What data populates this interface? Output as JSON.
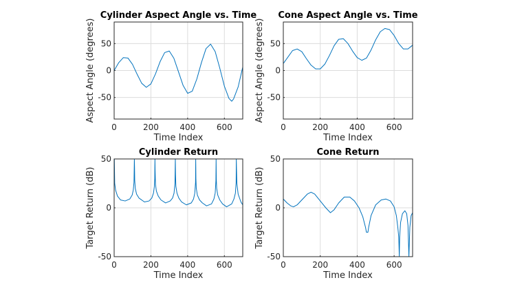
{
  "colors": {
    "line": "#0072bd",
    "grid": "#dcdcdc",
    "axes": "#262626"
  },
  "chart_data": [
    {
      "type": "line",
      "title": "Cylinder Aspect Angle vs. Time",
      "xlabel": "Time Index",
      "ylabel": "Aspect Angle (degrees)",
      "xlim": [
        0,
        700
      ],
      "ylim": [
        -90,
        90
      ],
      "xticks": [
        "0",
        "200",
        "400",
        "600"
      ],
      "yticks": [
        "-50",
        "0",
        "50"
      ],
      "grid": true,
      "points": [
        [
          0,
          0
        ],
        [
          25,
          14.6
        ],
        [
          50,
          24
        ],
        [
          75,
          23.2
        ],
        [
          100,
          11.4
        ],
        [
          125,
          -6.9
        ],
        [
          150,
          -23.7
        ],
        [
          175,
          -31.1
        ],
        [
          200,
          -24.8
        ],
        [
          225,
          -6.3
        ],
        [
          250,
          16.4
        ],
        [
          275,
          33.3
        ],
        [
          300,
          36.2
        ],
        [
          325,
          22.8
        ],
        [
          350,
          -2.2
        ],
        [
          375,
          -27.4
        ],
        [
          400,
          -42.3
        ],
        [
          425,
          -38.4
        ],
        [
          450,
          -15.8
        ],
        [
          475,
          14.6
        ],
        [
          500,
          40.6
        ],
        [
          525,
          49
        ],
        [
          550,
          35.1
        ],
        [
          575,
          4.4
        ],
        [
          600,
          -29
        ],
        [
          625,
          -51.8
        ],
        [
          640,
          -57
        ],
        [
          650,
          -52.8
        ],
        [
          675,
          -30.4
        ],
        [
          700,
          6.4
        ]
      ]
    },
    {
      "type": "line",
      "title": "Cone Aspect Angle vs. Time",
      "xlabel": "Time Index",
      "ylabel": "Aspect Angle (degrees)",
      "xlim": [
        0,
        700
      ],
      "ylim": [
        -90,
        90
      ],
      "xticks": [
        "0",
        "200",
        "400",
        "600"
      ],
      "yticks": [
        "-50",
        "0",
        "50"
      ],
      "grid": true,
      "points": [
        [
          0,
          13
        ],
        [
          25,
          25
        ],
        [
          50,
          37
        ],
        [
          75,
          40
        ],
        [
          100,
          35
        ],
        [
          125,
          22
        ],
        [
          150,
          10
        ],
        [
          175,
          3
        ],
        [
          200,
          3
        ],
        [
          225,
          12
        ],
        [
          250,
          28
        ],
        [
          275,
          46
        ],
        [
          300,
          58
        ],
        [
          325,
          59
        ],
        [
          350,
          50
        ],
        [
          375,
          36
        ],
        [
          400,
          24
        ],
        [
          425,
          19
        ],
        [
          450,
          23
        ],
        [
          475,
          38
        ],
        [
          500,
          57
        ],
        [
          525,
          72
        ],
        [
          550,
          78
        ],
        [
          575,
          76
        ],
        [
          600,
          65
        ],
        [
          625,
          50
        ],
        [
          650,
          40
        ],
        [
          675,
          40
        ],
        [
          700,
          47
        ]
      ]
    },
    {
      "type": "line",
      "title": "Cylinder Return",
      "xlabel": "Time Index",
      "ylabel": "Target Return (dB)",
      "xlim": [
        0,
        700
      ],
      "ylim": [
        -50,
        50
      ],
      "xticks": [
        "0",
        "200",
        "400",
        "600"
      ],
      "yticks": [
        "-50",
        "0",
        "50"
      ],
      "grid": true,
      "points": [
        [
          0,
          30
        ],
        [
          1,
          50
        ],
        [
          3,
          25
        ],
        [
          8,
          18
        ],
        [
          18,
          12
        ],
        [
          35,
          8
        ],
        [
          60,
          7
        ],
        [
          85,
          9
        ],
        [
          98,
          13
        ],
        [
          104,
          18
        ],
        [
          108,
          26
        ],
        [
          110,
          50
        ],
        [
          111,
          42
        ],
        [
          112,
          28
        ],
        [
          115,
          20
        ],
        [
          122,
          14
        ],
        [
          135,
          10
        ],
        [
          165,
          6
        ],
        [
          190,
          7
        ],
        [
          205,
          10
        ],
        [
          214,
          15
        ],
        [
          219,
          22
        ],
        [
          221,
          30
        ],
        [
          222,
          50
        ],
        [
          223,
          38
        ],
        [
          225,
          24
        ],
        [
          230,
          17
        ],
        [
          240,
          12
        ],
        [
          255,
          8
        ],
        [
          280,
          5
        ],
        [
          305,
          7
        ],
        [
          318,
          10
        ],
        [
          326,
          15
        ],
        [
          331,
          25
        ],
        [
          333,
          50
        ],
        [
          334,
          34
        ],
        [
          336,
          22
        ],
        [
          342,
          15
        ],
        [
          352,
          10
        ],
        [
          367,
          6
        ],
        [
          393,
          3
        ],
        [
          420,
          5
        ],
        [
          432,
          9
        ],
        [
          439,
          15
        ],
        [
          443,
          26
        ],
        [
          444,
          50
        ],
        [
          445,
          30
        ],
        [
          447,
          20
        ],
        [
          453,
          13
        ],
        [
          465,
          8
        ],
        [
          480,
          5
        ],
        [
          503,
          2
        ],
        [
          530,
          4
        ],
        [
          543,
          9
        ],
        [
          550,
          15
        ],
        [
          554,
          28
        ],
        [
          555,
          50
        ],
        [
          556,
          30
        ],
        [
          558,
          20
        ],
        [
          564,
          13
        ],
        [
          575,
          8
        ],
        [
          590,
          4
        ],
        [
          612,
          1
        ],
        [
          640,
          4
        ],
        [
          652,
          9
        ],
        [
          660,
          15
        ],
        [
          664,
          26
        ],
        [
          665,
          50
        ],
        [
          666,
          40
        ],
        [
          668,
          25
        ],
        [
          675,
          14
        ],
        [
          690,
          6
        ],
        [
          700,
          3
        ]
      ]
    },
    {
      "type": "line",
      "title": "Cone Return",
      "xlabel": "Time Index",
      "ylabel": "Target Return (dB)",
      "xlim": [
        0,
        700
      ],
      "ylim": [
        -50,
        50
      ],
      "xticks": [
        "0",
        "200",
        "400",
        "600"
      ],
      "yticks": [
        "-50",
        "0",
        "50"
      ],
      "grid": true,
      "points": [
        [
          0,
          9
        ],
        [
          20,
          5
        ],
        [
          40,
          2
        ],
        [
          55,
          1
        ],
        [
          75,
          3
        ],
        [
          100,
          8
        ],
        [
          130,
          14
        ],
        [
          150,
          16
        ],
        [
          170,
          14
        ],
        [
          200,
          7
        ],
        [
          230,
          0
        ],
        [
          255,
          -5
        ],
        [
          275,
          -2
        ],
        [
          300,
          5
        ],
        [
          330,
          11
        ],
        [
          360,
          11
        ],
        [
          385,
          7
        ],
        [
          410,
          0
        ],
        [
          430,
          -9
        ],
        [
          445,
          -20
        ],
        [
          450,
          -25
        ],
        [
          458,
          -25
        ],
        [
          462,
          -20
        ],
        [
          475,
          -8
        ],
        [
          500,
          3
        ],
        [
          530,
          8
        ],
        [
          555,
          9
        ],
        [
          580,
          7
        ],
        [
          600,
          1
        ],
        [
          612,
          -8
        ],
        [
          620,
          -20
        ],
        [
          625,
          -30
        ],
        [
          628,
          -50
        ],
        [
          630,
          -30
        ],
        [
          635,
          -15
        ],
        [
          645,
          -6
        ],
        [
          658,
          -3
        ],
        [
          668,
          -6
        ],
        [
          675,
          -18
        ],
        [
          680,
          -50
        ],
        [
          685,
          -20
        ],
        [
          692,
          -8
        ],
        [
          700,
          -5
        ]
      ]
    }
  ]
}
